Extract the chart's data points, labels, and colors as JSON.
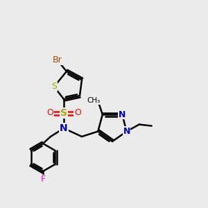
{
  "bg_color": "#ebebeb",
  "atom_colors": {
    "Br": "#aa4400",
    "S": "#aaaa00",
    "O": "#ff0000",
    "N": "#0000cc",
    "F": "#ff00ff",
    "C": "#000000"
  },
  "figsize": [
    3.0,
    3.0
  ],
  "dpi": 100
}
